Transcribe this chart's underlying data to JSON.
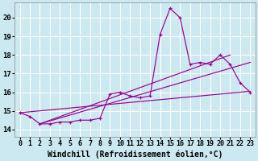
{
  "background_color": "#cce8f0",
  "grid_color": "#ffffff",
  "line_color": "#990099",
  "xlabel": "Windchill (Refroidissement éolien,°C)",
  "xlabel_fontsize": 7.0,
  "xtick_fontsize": 6.0,
  "ytick_fontsize": 6.5,
  "ylim": [
    13.6,
    20.8
  ],
  "xlim": [
    -0.5,
    23.5
  ],
  "yticks": [
    14,
    15,
    16,
    17,
    18,
    19,
    20
  ],
  "xticks": [
    0,
    1,
    2,
    3,
    4,
    5,
    6,
    7,
    8,
    9,
    10,
    11,
    12,
    13,
    14,
    15,
    16,
    17,
    18,
    19,
    20,
    21,
    22,
    23
  ],
  "main_x": [
    0,
    1,
    2,
    3,
    4,
    5,
    6,
    7,
    8,
    9,
    10,
    11,
    12,
    13,
    14,
    15,
    16,
    17,
    18,
    19,
    20,
    21,
    22,
    23
  ],
  "main_y": [
    14.9,
    14.7,
    14.3,
    14.3,
    14.4,
    14.4,
    14.5,
    14.5,
    14.6,
    15.9,
    16.0,
    15.8,
    15.7,
    15.8,
    19.1,
    20.5,
    20.0,
    17.5,
    17.6,
    17.5,
    18.0,
    17.5,
    16.5,
    16.0
  ],
  "line1_x": [
    0,
    23
  ],
  "line1_y": [
    14.9,
    16.05
  ],
  "line2_x": [
    2,
    21
  ],
  "line2_y": [
    14.3,
    18.0
  ],
  "line3_x": [
    2,
    23
  ],
  "line3_y": [
    14.3,
    17.6
  ]
}
